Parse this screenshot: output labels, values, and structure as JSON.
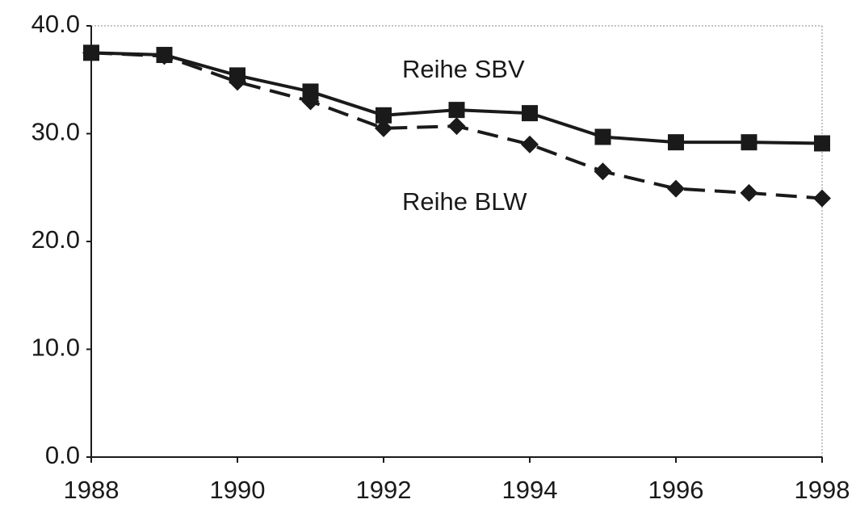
{
  "chart_data": {
    "type": "line",
    "x": [
      1988,
      1989,
      1990,
      1991,
      1992,
      1993,
      1994,
      1995,
      1996,
      1997,
      1998
    ],
    "series": [
      {
        "name": "Reihe SBV",
        "color": "#1a1a1a",
        "marker": "square",
        "dash": false,
        "values": [
          37.5,
          37.3,
          35.4,
          33.9,
          31.7,
          32.2,
          31.9,
          29.7,
          29.2,
          29.2,
          29.1
        ]
      },
      {
        "name": "Reihe BLW",
        "color": "#1a1a1a",
        "marker": "diamond",
        "dash": true,
        "values": [
          37.5,
          37.2,
          34.8,
          33.0,
          30.5,
          30.7,
          29.0,
          26.5,
          24.9,
          24.5,
          24.0
        ]
      }
    ],
    "xlim": [
      1988,
      1998
    ],
    "xticks": [
      1988,
      1990,
      1992,
      1994,
      1996,
      1998
    ],
    "ylim": [
      0,
      40
    ],
    "yticks": [
      {
        "value": 0,
        "label": "0.0"
      },
      {
        "value": 10,
        "label": "10.0"
      },
      {
        "value": 20,
        "label": "20.0"
      },
      {
        "value": 30,
        "label": "30.0"
      },
      {
        "value": 40,
        "label": "40.0"
      }
    ],
    "grid": false
  }
}
